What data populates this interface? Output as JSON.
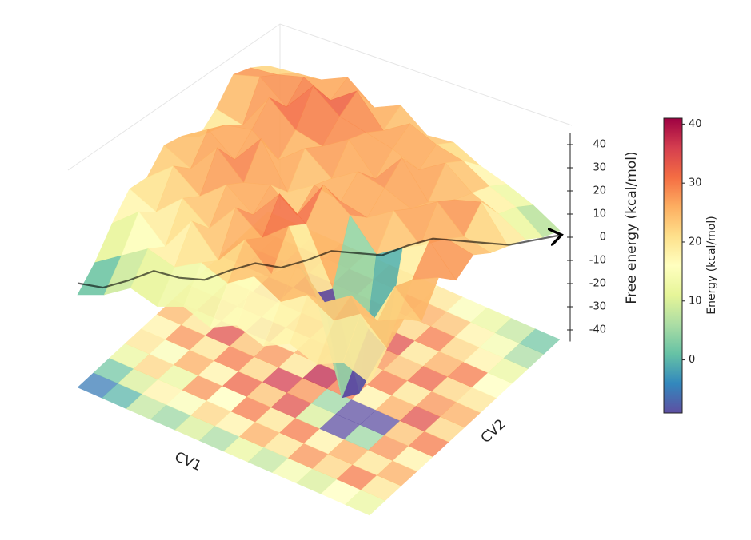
{
  "chart_data": {
    "type": "surface3d",
    "zlabel": "Free energy (kcal/mol)",
    "xlabel": "CV1",
    "ylabel": "CV2",
    "colorbar_label": "Energy (kcal/mol)",
    "zlim": [
      -45,
      45
    ],
    "zticks": [
      -40,
      -30,
      -20,
      -10,
      0,
      10,
      20,
      30,
      40
    ],
    "clim": [
      -9,
      41
    ],
    "cticks": [
      0,
      10,
      20,
      30,
      40
    ],
    "colormap": [
      "#5e4fa2",
      "#3288bd",
      "#66c2a5",
      "#abdda4",
      "#e6f598",
      "#ffffbf",
      "#fee08b",
      "#fdae61",
      "#f46d43",
      "#d53e4f",
      "#9e0142"
    ],
    "z": [
      [
        -5,
        2,
        12,
        20,
        18,
        25,
        22,
        15,
        20,
        28,
        24,
        18
      ],
      [
        0,
        10,
        22,
        15,
        28,
        20,
        30,
        25,
        18,
        32,
        26,
        20
      ],
      [
        8,
        18,
        12,
        26,
        20,
        34,
        22,
        28,
        35,
        24,
        30,
        22
      ],
      [
        5,
        15,
        28,
        18,
        30,
        24,
        36,
        20,
        26,
        38,
        25,
        28
      ],
      [
        10,
        22,
        16,
        32,
        22,
        28,
        18,
        30,
        24,
        30,
        34,
        20
      ],
      [
        6,
        18,
        30,
        24,
        36,
        20,
        26,
        22,
        32,
        28,
        22,
        26
      ],
      [
        12,
        26,
        20,
        34,
        28,
        38,
        24,
        30,
        20,
        26,
        30,
        18
      ],
      [
        8,
        20,
        30,
        10,
        5,
        30,
        22,
        28,
        34,
        22,
        26,
        20
      ],
      [
        14,
        28,
        18,
        -30,
        -35,
        18,
        30,
        24,
        20,
        30,
        24,
        15
      ],
      [
        10,
        22,
        26,
        5,
        -10,
        26,
        20,
        32,
        26,
        22,
        18,
        12
      ],
      [
        16,
        30,
        20,
        28,
        24,
        34,
        28,
        22,
        30,
        18,
        14,
        8
      ],
      [
        12,
        20,
        26,
        18,
        30,
        22,
        26,
        20,
        16,
        12,
        6,
        2
      ]
    ],
    "path": {
      "color": "#000000",
      "values": [
        0,
        -3,
        -1,
        2,
        -2,
        -4,
        -1,
        1,
        -2,
        0,
        3,
        1,
        -1,
        2,
        4,
        2,
        0,
        -2,
        -1,
        0
      ]
    }
  }
}
